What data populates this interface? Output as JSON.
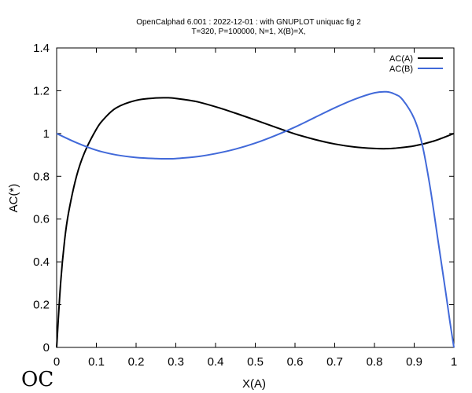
{
  "title_line1": "OpenCalphad   6.001 :  2022-12-01 : with GNUPLOT uniquac fig 2",
  "title_line2": "T=320, P=100000, N=1, X(B)=X,",
  "logo_text": "OC",
  "chart_data": {
    "type": "line",
    "xlabel": "X(A)",
    "ylabel": "AC(*)",
    "xlim": [
      0,
      1
    ],
    "ylim": [
      0,
      1.4
    ],
    "x_ticks": [
      "0",
      "0.1",
      "0.2",
      "0.3",
      "0.4",
      "0.5",
      "0.6",
      "0.7",
      "0.8",
      "0.9",
      "1"
    ],
    "y_ticks": [
      "0",
      "0.2",
      "0.4",
      "0.6",
      "0.8",
      "1",
      "1.2",
      "1.4"
    ],
    "x_tick_values": [
      0,
      0.1,
      0.2,
      0.3,
      0.4,
      0.5,
      0.6,
      0.7,
      0.8,
      0.9,
      1.0
    ],
    "y_tick_values": [
      0,
      0.2,
      0.4,
      0.6,
      0.8,
      1.0,
      1.2,
      1.4
    ],
    "grid": false,
    "legend_position": "top-right",
    "series": [
      {
        "name": "AC(A)",
        "color": "#000000",
        "x": [
          0,
          0.01,
          0.02,
          0.03,
          0.05,
          0.07,
          0.1,
          0.12,
          0.15,
          0.2,
          0.25,
          0.28,
          0.3,
          0.35,
          0.4,
          0.45,
          0.5,
          0.55,
          0.6,
          0.65,
          0.7,
          0.75,
          0.8,
          0.83,
          0.85,
          0.9,
          0.95,
          1.0
        ],
        "y": [
          0,
          0.3,
          0.5,
          0.63,
          0.8,
          0.91,
          1.02,
          1.07,
          1.12,
          1.155,
          1.166,
          1.167,
          1.164,
          1.15,
          1.125,
          1.095,
          1.063,
          1.03,
          0.998,
          0.972,
          0.951,
          0.937,
          0.93,
          0.929,
          0.931,
          0.942,
          0.965,
          1.0
        ]
      },
      {
        "name": "AC(B)",
        "color": "#4169d9",
        "x": [
          0,
          0.05,
          0.1,
          0.15,
          0.2,
          0.25,
          0.28,
          0.3,
          0.35,
          0.4,
          0.45,
          0.5,
          0.55,
          0.6,
          0.65,
          0.7,
          0.75,
          0.8,
          0.83,
          0.85,
          0.87,
          0.9,
          0.92,
          0.94,
          0.96,
          0.98,
          0.99,
          1.0
        ],
        "y": [
          1.0,
          0.957,
          0.922,
          0.9,
          0.888,
          0.883,
          0.882,
          0.883,
          0.891,
          0.906,
          0.927,
          0.955,
          0.99,
          1.03,
          1.075,
          1.12,
          1.16,
          1.19,
          1.195,
          1.185,
          1.16,
          1.07,
          0.95,
          0.75,
          0.5,
          0.25,
          0.12,
          0
        ]
      }
    ]
  }
}
